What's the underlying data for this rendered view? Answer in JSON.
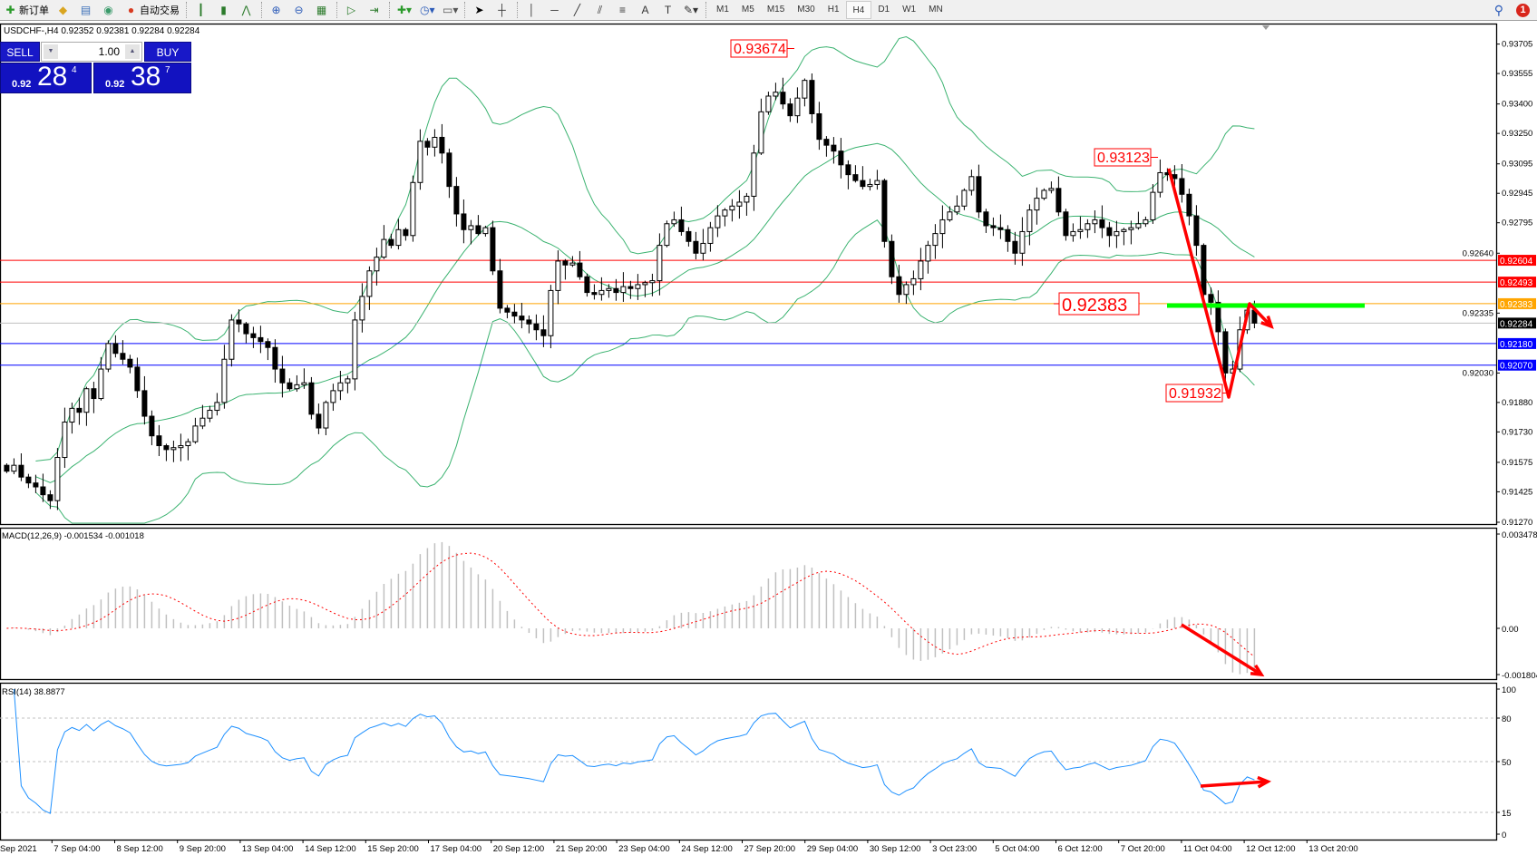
{
  "toolbar": {
    "items": [
      {
        "icon": "new-order-icon",
        "glyph": "✚",
        "label": "新订单",
        "color": "#2a9a2a"
      },
      {
        "icon": "market-watch-icon",
        "glyph": "◆",
        "label": "",
        "color": "#d9a520"
      },
      {
        "icon": "data-window-icon",
        "glyph": "▤",
        "label": "",
        "color": "#3a6fb8"
      },
      {
        "icon": "signal-icon",
        "glyph": "◉",
        "label": "",
        "color": "#3a9a6a"
      },
      {
        "icon": "auto-trading-icon",
        "glyph": "●",
        "label": "自动交易",
        "color": "#d83a20"
      },
      {
        "sep": true
      },
      {
        "icon": "bar-chart-icon",
        "glyph": "┃",
        "label": "",
        "color": "#2a7a2a"
      },
      {
        "icon": "candlestick-icon",
        "glyph": "▮",
        "label": "",
        "color": "#2a7a2a"
      },
      {
        "icon": "line-chart-icon",
        "glyph": "⋀",
        "label": "",
        "color": "#2a7a2a"
      },
      {
        "sep": true
      },
      {
        "icon": "zoom-in-icon",
        "glyph": "⊕",
        "label": "",
        "color": "#2a5ab8"
      },
      {
        "icon": "zoom-out-icon",
        "glyph": "⊖",
        "label": "",
        "color": "#2a5ab8"
      },
      {
        "icon": "tile-windows-icon",
        "glyph": "▦",
        "label": "",
        "color": "#2a7a2a"
      },
      {
        "sep": true
      },
      {
        "icon": "autoscroll-icon",
        "glyph": "▷",
        "label": "",
        "color": "#2a7a2a"
      },
      {
        "icon": "chart-shift-icon",
        "glyph": "⇥",
        "label": "",
        "color": "#2a7a2a"
      },
      {
        "sep": true
      },
      {
        "icon": "indicators-icon",
        "glyph": "✚▾",
        "label": "",
        "color": "#2a9a2a"
      },
      {
        "icon": "periods-icon",
        "glyph": "◷▾",
        "label": "",
        "color": "#2a5ab8"
      },
      {
        "icon": "templates-icon",
        "glyph": "▭▾",
        "label": "",
        "color": "#555"
      },
      {
        "sep": true
      },
      {
        "icon": "cursor-icon",
        "glyph": "➤",
        "label": "",
        "color": "#000"
      },
      {
        "icon": "crosshair-icon",
        "glyph": "┼",
        "label": "",
        "color": "#333"
      },
      {
        "sep": true
      },
      {
        "icon": "vertical-line-icon",
        "glyph": "│",
        "label": "",
        "color": "#333"
      },
      {
        "icon": "horizontal-line-icon",
        "glyph": "─",
        "label": "",
        "color": "#333"
      },
      {
        "icon": "trendline-icon",
        "glyph": "╱",
        "label": "",
        "color": "#333"
      },
      {
        "icon": "equidistant-channel-icon",
        "glyph": "⫽",
        "label": "",
        "color": "#333"
      },
      {
        "icon": "fibonacci-icon",
        "glyph": "≡",
        "label": "",
        "color": "#333"
      },
      {
        "icon": "text-icon",
        "glyph": "A",
        "label": "",
        "color": "#333"
      },
      {
        "icon": "text-label-icon",
        "glyph": "T",
        "label": "",
        "color": "#333"
      },
      {
        "icon": "arrows-icon",
        "glyph": "✎▾",
        "label": "",
        "color": "#333"
      },
      {
        "sep": true
      }
    ],
    "timeframes": [
      "M1",
      "M5",
      "M15",
      "M30",
      "H1",
      "H4",
      "D1",
      "W1",
      "MN"
    ],
    "selected_timeframe": "H4",
    "notification_count": "1"
  },
  "chart": {
    "title": "USDCHF-,H4  0.92352 0.92381 0.92284 0.92284",
    "trade_panel": {
      "sell_label": "SELL",
      "buy_label": "BUY",
      "lot": "1.00",
      "sell_small": "0.92",
      "sell_big": "28",
      "sell_pip": "4",
      "buy_small": "0.92",
      "buy_big": "38",
      "buy_pip": "7"
    }
  },
  "chart_data": {
    "type": "candlestick",
    "symbol": "USDCHF-",
    "timeframe": "H4",
    "closes": [
      0.9153,
      0.9156,
      0.915,
      0.9147,
      0.9145,
      0.9141,
      0.9138,
      0.916,
      0.9178,
      0.9185,
      0.9183,
      0.9195,
      0.919,
      0.9205,
      0.9218,
      0.9213,
      0.921,
      0.9206,
      0.9194,
      0.9181,
      0.9171,
      0.9166,
      0.9164,
      0.9165,
      0.9166,
      0.9168,
      0.9176,
      0.918,
      0.9184,
      0.9188,
      0.921,
      0.923,
      0.9228,
      0.9223,
      0.9221,
      0.9219,
      0.9216,
      0.9205,
      0.9198,
      0.9195,
      0.9197,
      0.9198,
      0.9182,
      0.9175,
      0.9188,
      0.9194,
      0.9198,
      0.92,
      0.923,
      0.9242,
      0.9255,
      0.9262,
      0.9271,
      0.9268,
      0.9276,
      0.9273,
      0.93,
      0.9321,
      0.9318,
      0.9323,
      0.9315,
      0.9298,
      0.9284,
      0.9276,
      0.9278,
      0.9274,
      0.9277,
      0.9255,
      0.9236,
      0.9234,
      0.9232,
      0.923,
      0.9228,
      0.9225,
      0.9222,
      0.9245,
      0.926,
      0.9258,
      0.9259,
      0.9252,
      0.9244,
      0.9243,
      0.9245,
      0.9246,
      0.9244,
      0.9247,
      0.9246,
      0.9248,
      0.9249,
      0.925,
      0.9268,
      0.9279,
      0.9281,
      0.9275,
      0.927,
      0.9264,
      0.9269,
      0.9277,
      0.9283,
      0.9286,
      0.9288,
      0.929,
      0.9293,
      0.9315,
      0.9336,
      0.9344,
      0.9346,
      0.934,
      0.9334,
      0.9343,
      0.9352,
      0.9335,
      0.9322,
      0.9319,
      0.9316,
      0.9309,
      0.9304,
      0.9301,
      0.9298,
      0.9299,
      0.9301,
      0.927,
      0.9252,
      0.9243,
      0.9248,
      0.9251,
      0.926,
      0.9268,
      0.9274,
      0.9281,
      0.9285,
      0.9288,
      0.9296,
      0.9303,
      0.9285,
      0.9278,
      0.9277,
      0.9276,
      0.927,
      0.9264,
      0.9275,
      0.9286,
      0.9292,
      0.9296,
      0.9297,
      0.9285,
      0.9273,
      0.9275,
      0.9276,
      0.9279,
      0.9281,
      0.9277,
      0.9273,
      0.9275,
      0.9276,
      0.9277,
      0.9279,
      0.9281,
      0.9295,
      0.9305,
      0.9304,
      0.9302,
      0.9294,
      0.9283,
      0.9268,
      0.9243,
      0.9239,
      0.9224,
      0.9203,
      0.9205,
      0.9225,
      0.9235,
      0.92284
    ],
    "price_axis": {
      "min": 0.9127,
      "max": 0.93705,
      "ticks": [
        "0.93705",
        "0.93555",
        "0.93400",
        "0.93250",
        "0.93095",
        "0.92945",
        "0.92795",
        "0.92640",
        "0.92335",
        "0.92030",
        "0.91880",
        "0.91730",
        "0.91575",
        "0.91425",
        "0.91270"
      ]
    },
    "time_labels": [
      "Sep 2021",
      "7 Sep 04:00",
      "8 Sep 12:00",
      "9 Sep 20:00",
      "13 Sep 04:00",
      "14 Sep 12:00",
      "15 Sep 20:00",
      "17 Sep 04:00",
      "20 Sep 12:00",
      "21 Sep 20:00",
      "23 Sep 04:00",
      "24 Sep 12:00",
      "27 Sep 20:00",
      "29 Sep 04:00",
      "30 Sep 12:00",
      "3 Oct 23:00",
      "5 Oct 04:00",
      "6 Oct 12:00",
      "7 Oct 20:00",
      "11 Oct 04:00",
      "12 Oct 12:00",
      "13 Oct 20:00"
    ],
    "horizontal_lines": [
      {
        "price": "0.92604",
        "color": "#ff0000"
      },
      {
        "price": "0.92493",
        "color": "#ff0000"
      },
      {
        "price": "0.92383",
        "color": "#ffa500"
      },
      {
        "price": "0.92284",
        "color": "#c0c0c0",
        "tag_color": "#000000"
      },
      {
        "price": "0.92180",
        "color": "#0000ff"
      },
      {
        "price": "0.92070",
        "color": "#0000ff"
      }
    ],
    "price_labels": [
      {
        "text": "0.93674",
        "candle": 110
      },
      {
        "text": "0.93123",
        "candle": 159
      },
      {
        "text": "0.92383",
        "candle": 135
      },
      {
        "text": "0.91932",
        "candle": 168
      }
    ],
    "bollinger": {
      "period": 20,
      "deviation": 2,
      "color": "#3cb371"
    },
    "macd": {
      "label": "MACD(12,26,9) -0.001534 -0.001018",
      "ticks": [
        "0.003478",
        "0.00",
        "-0.001804"
      ],
      "min": -0.001804,
      "max": 0.003478,
      "hist_color": "#c0c0c0",
      "signal_color": "#ff0000"
    },
    "rsi": {
      "label": "RSI(14) 38.8877",
      "levels": [
        "80",
        "50",
        "15"
      ],
      "ticks": [
        "100",
        "80",
        "50",
        "15",
        "0"
      ],
      "color": "#1e90ff"
    },
    "annotations_color": "#ff0000",
    "support_line_color": "#00ff00"
  }
}
